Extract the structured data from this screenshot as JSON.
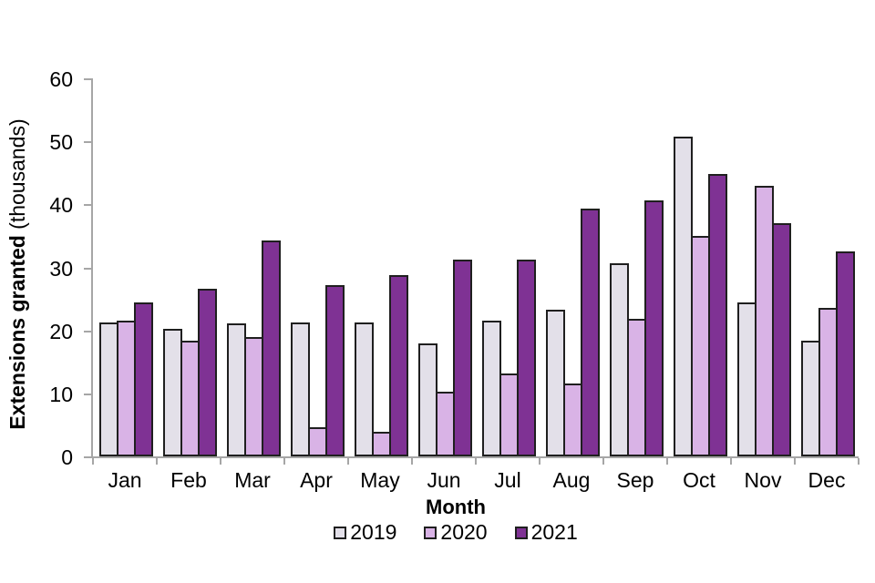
{
  "chart_data": {
    "type": "bar",
    "title": "",
    "xlabel": "Month",
    "ylabel_bold": "Extensions granted",
    "ylabel_normal": "(thousands)",
    "categories": [
      "Jan",
      "Feb",
      "Mar",
      "Apr",
      "May",
      "Jun",
      "Jul",
      "Aug",
      "Sep",
      "Oct",
      "Nov",
      "Dec"
    ],
    "series": [
      {
        "name": "2019",
        "color": "#e3e0e9",
        "values": [
          21.3,
          20.2,
          21.1,
          21.3,
          21.2,
          18.0,
          21.5,
          23.3,
          30.7,
          50.8,
          24.4,
          18.4
        ]
      },
      {
        "name": "2020",
        "color": "#d9b3e6",
        "values": [
          21.5,
          18.3,
          19.0,
          4.7,
          3.9,
          10.3,
          13.1,
          11.6,
          21.8,
          35.0,
          42.9,
          23.6
        ]
      },
      {
        "name": "2021",
        "color": "#7f3294",
        "values": [
          24.4,
          26.6,
          34.3,
          27.2,
          28.8,
          31.3,
          31.3,
          39.3,
          40.6,
          44.8,
          37.0,
          32.5
        ]
      }
    ],
    "ylim": [
      0,
      60
    ],
    "yticks": [
      0,
      10,
      20,
      30,
      40,
      50,
      60
    ],
    "grid": false,
    "legend_position": "bottom",
    "axis_color": "#a6a6a6",
    "bar_border_color": "#1f1f1f",
    "text_color": "#000000"
  }
}
